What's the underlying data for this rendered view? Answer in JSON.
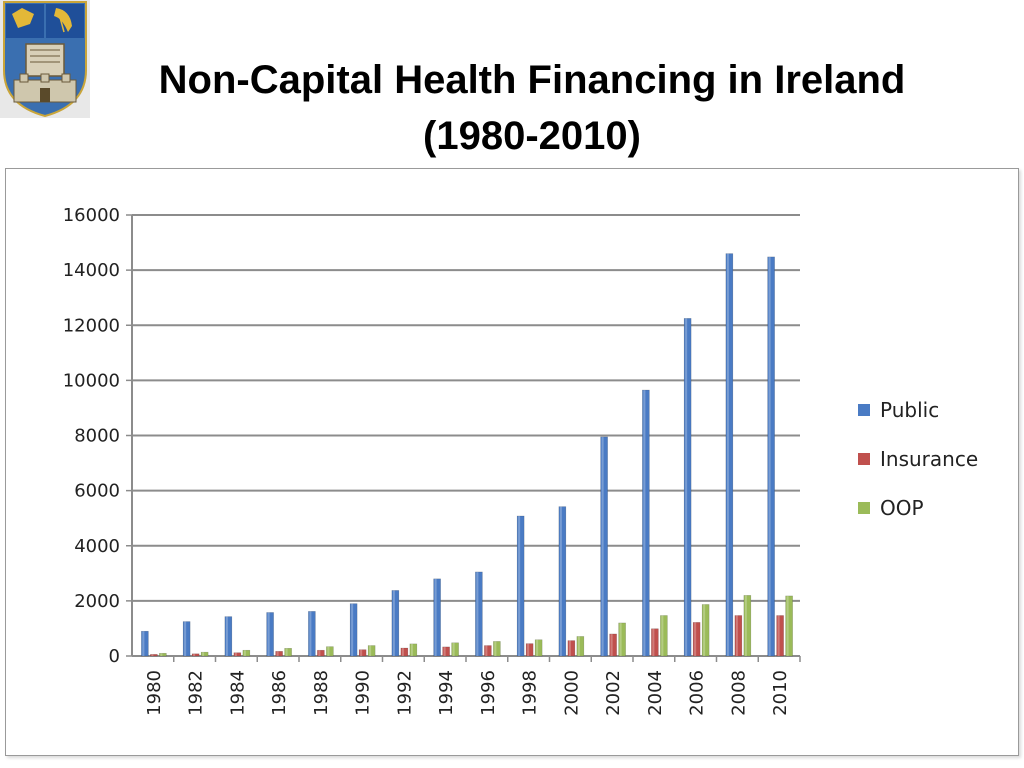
{
  "header": {
    "title_line1": "Non-Capital Health Financing in Ireland",
    "title_line2": "(1980-2010)",
    "crest_icon": "university-crest-icon"
  },
  "chart_data": {
    "type": "bar",
    "title": "",
    "xlabel": "",
    "ylabel": "",
    "ylim": [
      0,
      16000
    ],
    "yticks": [
      0,
      2000,
      4000,
      6000,
      8000,
      10000,
      12000,
      14000,
      16000
    ],
    "grid": true,
    "legend_position": "right",
    "categories": [
      "1980",
      "1982",
      "1984",
      "1986",
      "1988",
      "1990",
      "1992",
      "1994",
      "1996",
      "1998",
      "2000",
      "2002",
      "2004",
      "2006",
      "2008",
      "2010"
    ],
    "series": [
      {
        "name": "Public",
        "color": "#4a7bc4",
        "values": [
          900,
          1250,
          1430,
          1580,
          1620,
          1900,
          2380,
          2800,
          3050,
          5080,
          5420,
          7950,
          9650,
          12250,
          14600,
          14480
        ]
      },
      {
        "name": "Insurance",
        "color": "#c0504d",
        "values": [
          60,
          80,
          120,
          170,
          210,
          230,
          290,
          330,
          380,
          450,
          560,
          800,
          990,
          1220,
          1470,
          1470
        ]
      },
      {
        "name": "OOP",
        "color": "#9bbb59",
        "values": [
          100,
          140,
          210,
          280,
          340,
          380,
          440,
          480,
          530,
          590,
          710,
          1200,
          1470,
          1870,
          2200,
          2180
        ]
      }
    ]
  }
}
